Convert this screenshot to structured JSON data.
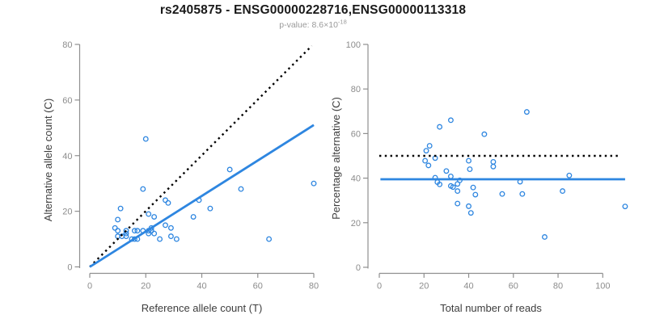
{
  "header": {
    "title": "rs2405875 - ENSG00000228716,ENSG00000113318",
    "pvalue_prefix": "p-value: 8.6×10",
    "pvalue_exponent": "-18"
  },
  "colors": {
    "accent_blue": "#2E86E0",
    "identity_black": "#000000",
    "axis_gray": "#8f8f8f",
    "tick_label_gray": "#8c8c8c",
    "axis_title_gray": "#3d3d3d",
    "title_black": "#1a1a1a",
    "subtitle_gray": "#9a9a9a"
  },
  "chart_data": [
    {
      "type": "scatter",
      "name": "allele-counts",
      "title": "",
      "xlabel": "Reference allele count (T)",
      "ylabel": "Alternative allele count (C)",
      "xlim": [
        0,
        80
      ],
      "ylim": [
        0,
        80
      ],
      "xticks": [
        0,
        20,
        40,
        60,
        80
      ],
      "yticks": [
        0,
        20,
        40,
        60,
        80
      ],
      "grid": false,
      "legend": "none",
      "points": [
        [
          20,
          46
        ],
        [
          50,
          35
        ],
        [
          80,
          30
        ],
        [
          19,
          28
        ],
        [
          54,
          28
        ],
        [
          27,
          24
        ],
        [
          39,
          24
        ],
        [
          28,
          23
        ],
        [
          11,
          21
        ],
        [
          43,
          21
        ],
        [
          21,
          19
        ],
        [
          23,
          18
        ],
        [
          37,
          18
        ],
        [
          10,
          17
        ],
        [
          27,
          15
        ],
        [
          29,
          14
        ],
        [
          22,
          14
        ],
        [
          9,
          14
        ],
        [
          16,
          13
        ],
        [
          17,
          13
        ],
        [
          19,
          13
        ],
        [
          21,
          13
        ],
        [
          22,
          13
        ],
        [
          13,
          13
        ],
        [
          10,
          13
        ],
        [
          23,
          12
        ],
        [
          13,
          12
        ],
        [
          21,
          12
        ],
        [
          10,
          11
        ],
        [
          11.5,
          11
        ],
        [
          13,
          11
        ],
        [
          15,
          10
        ],
        [
          16,
          10
        ],
        [
          17,
          10
        ],
        [
          25,
          10
        ],
        [
          29,
          11
        ],
        [
          31,
          10
        ],
        [
          64,
          10
        ]
      ],
      "lines": [
        {
          "name": "identity-line",
          "style": "dotted",
          "color": "#000000",
          "x": [
            0,
            79.3
          ],
          "y": [
            0,
            79.5
          ]
        },
        {
          "name": "fit-line",
          "style": "solid",
          "color": "#2E86E0",
          "x": [
            0,
            80
          ],
          "y": [
            0,
            51
          ]
        }
      ]
    },
    {
      "type": "scatter",
      "name": "percentage-vs-reads",
      "title": "",
      "xlabel": "Total number of reads",
      "ylabel": "Percentage alternative (C)",
      "xlim": [
        0,
        110
      ],
      "ylim": [
        0,
        100
      ],
      "xticks": [
        0,
        20,
        40,
        60,
        80,
        100
      ],
      "yticks": [
        0,
        20,
        40,
        60,
        80,
        100
      ],
      "grid": false,
      "legend": "none",
      "points": [
        [
          66,
          69.7
        ],
        [
          32,
          66
        ],
        [
          27,
          63
        ],
        [
          47,
          59.7
        ],
        [
          22.5,
          54.5
        ],
        [
          21,
          52.3
        ],
        [
          25,
          49
        ],
        [
          20.5,
          47.8
        ],
        [
          40,
          47.8
        ],
        [
          51,
          47.3
        ],
        [
          22,
          45.7
        ],
        [
          51,
          45.2
        ],
        [
          30,
          43.2
        ],
        [
          40.5,
          44
        ],
        [
          25,
          40.2
        ],
        [
          32,
          40.8
        ],
        [
          85,
          41.2
        ],
        [
          26,
          38.2
        ],
        [
          27,
          37.2
        ],
        [
          32,
          36.5
        ],
        [
          33,
          36
        ],
        [
          35,
          37.4
        ],
        [
          36,
          39
        ],
        [
          35,
          34.2
        ],
        [
          42,
          35.8
        ],
        [
          63,
          38.4
        ],
        [
          43,
          32.6
        ],
        [
          55,
          32.9
        ],
        [
          64,
          32.9
        ],
        [
          82,
          34.2
        ],
        [
          35,
          28.6
        ],
        [
          40,
          27.4
        ],
        [
          41,
          24.4
        ],
        [
          110,
          27.3
        ],
        [
          74,
          13.6
        ]
      ],
      "lines": [
        {
          "name": "fifty-percent-line",
          "style": "dotted",
          "color": "#000000",
          "x": [
            0,
            108
          ],
          "y": [
            50,
            50
          ]
        },
        {
          "name": "mean-percentage-line",
          "style": "solid",
          "color": "#2E86E0",
          "x": [
            0.5,
            110
          ],
          "y": [
            39.5,
            39.5
          ]
        }
      ]
    }
  ]
}
